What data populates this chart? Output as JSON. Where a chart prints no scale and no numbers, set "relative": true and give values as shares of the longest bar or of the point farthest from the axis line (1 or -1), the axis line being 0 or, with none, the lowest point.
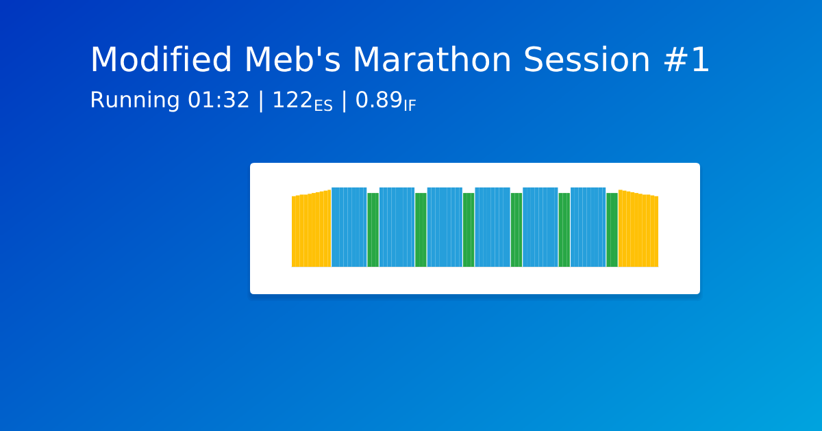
{
  "chart_data": {
    "type": "bar",
    "title": "Modified Meb's Marathon Session #1",
    "subtitle": "Running 01:32 | 122$_{ES}$ | 0.89$_{IF}$",
    "relative": true,
    "tick_labels": false,
    "categories": [
      null,
      null,
      null,
      null,
      null,
      null,
      null,
      null,
      null,
      null,
      null,
      null,
      null,
      null,
      null,
      null,
      null,
      null,
      null,
      null,
      null,
      null,
      null,
      null,
      null,
      null,
      null,
      null,
      null,
      null,
      null,
      null,
      null,
      null,
      null,
      null,
      null,
      null,
      null,
      null,
      null,
      null,
      null,
      null,
      null,
      null,
      null,
      null,
      null,
      null,
      null,
      null,
      null,
      null,
      null,
      null,
      null,
      null,
      null,
      null,
      null,
      null,
      null,
      null,
      null,
      null,
      null,
      null,
      null,
      null,
      null,
      null,
      null,
      null,
      null,
      null,
      null,
      null,
      null,
      null,
      null,
      null,
      null,
      null,
      null,
      null,
      null,
      null,
      null,
      null,
      null,
      null
    ],
    "values": [
      0.89,
      0.9,
      0.91,
      0.91,
      0.92,
      0.93,
      0.94,
      0.95,
      0.96,
      0.97,
      1,
      1,
      1,
      1,
      1,
      1,
      1,
      1,
      1,
      0.93,
      0.93,
      0.93,
      1,
      1,
      1,
      1,
      1,
      1,
      1,
      1,
      1,
      0.93,
      0.93,
      0.93,
      1,
      1,
      1,
      1,
      1,
      1,
      1,
      1,
      1,
      0.93,
      0.93,
      0.93,
      1,
      1,
      1,
      1,
      1,
      1,
      1,
      1,
      1,
      0.93,
      0.93,
      0.93,
      1,
      1,
      1,
      1,
      1,
      1,
      1,
      1,
      1,
      0.93,
      0.93,
      0.93,
      1,
      1,
      1,
      1,
      1,
      1,
      1,
      1,
      1,
      0.93,
      0.93,
      0.93,
      0.97,
      0.96,
      0.95,
      0.94,
      0.93,
      0.92,
      0.91,
      0.91,
      0.9,
      0.89
    ],
    "colors": [
      "#ffc107",
      "#ffc107",
      "#ffc107",
      "#ffc107",
      "#ffc107",
      "#ffc107",
      "#ffc107",
      "#ffc107",
      "#ffc107",
      "#ffc107",
      "#269fdb",
      "#269fdb",
      "#269fdb",
      "#269fdb",
      "#269fdb",
      "#269fdb",
      "#269fdb",
      "#269fdb",
      "#269fdb",
      "#28a745",
      "#28a745",
      "#28a745",
      "#269fdb",
      "#269fdb",
      "#269fdb",
      "#269fdb",
      "#269fdb",
      "#269fdb",
      "#269fdb",
      "#269fdb",
      "#269fdb",
      "#28a745",
      "#28a745",
      "#28a745",
      "#269fdb",
      "#269fdb",
      "#269fdb",
      "#269fdb",
      "#269fdb",
      "#269fdb",
      "#269fdb",
      "#269fdb",
      "#269fdb",
      "#28a745",
      "#28a745",
      "#28a745",
      "#269fdb",
      "#269fdb",
      "#269fdb",
      "#269fdb",
      "#269fdb",
      "#269fdb",
      "#269fdb",
      "#269fdb",
      "#269fdb",
      "#28a745",
      "#28a745",
      "#28a745",
      "#269fdb",
      "#269fdb",
      "#269fdb",
      "#269fdb",
      "#269fdb",
      "#269fdb",
      "#269fdb",
      "#269fdb",
      "#269fdb",
      "#28a745",
      "#28a745",
      "#28a745",
      "#269fdb",
      "#269fdb",
      "#269fdb",
      "#269fdb",
      "#269fdb",
      "#269fdb",
      "#269fdb",
      "#269fdb",
      "#269fdb",
      "#28a745",
      "#28a745",
      "#28a745",
      "#ffc107",
      "#ffc107",
      "#ffc107",
      "#ffc107",
      "#ffc107",
      "#ffc107",
      "#ffc107",
      "#ffc107",
      "#ffc107",
      "#ffc107"
    ]
  }
}
